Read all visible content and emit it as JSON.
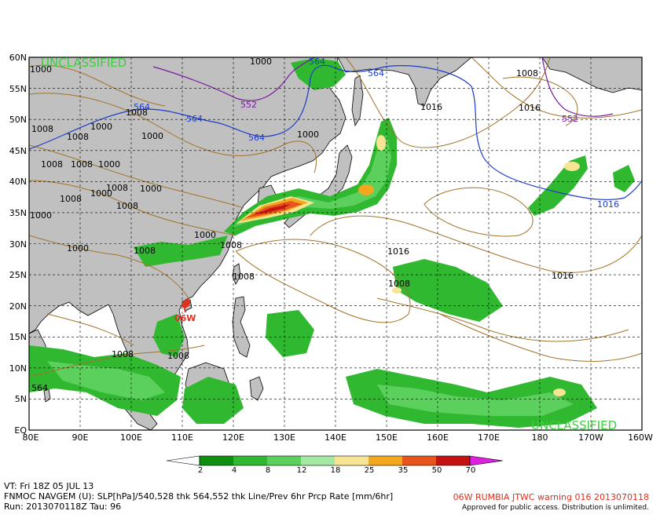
{
  "map": {
    "classification_top": "UNCLASSIFIED",
    "classification_bottom": "UNCLASSIFIED",
    "lat_labels": [
      "60N",
      "55N",
      "50N",
      "45N",
      "40N",
      "35N",
      "30N",
      "25N",
      "20N",
      "15N",
      "10N",
      "5N",
      "EQ"
    ],
    "lon_labels": [
      "80E",
      "90E",
      "100E",
      "110E",
      "120E",
      "130E",
      "140E",
      "150E",
      "160E",
      "170E",
      "180",
      "170W",
      "160W"
    ],
    "storm_label": "06W",
    "colors": {
      "land": "#c0c0c0",
      "ocean": "#ffffff",
      "slp_isobar": "#a0742a",
      "thk_540_528": "#7a1aa0",
      "thk_564_552": "#1e3cc8",
      "classification_text": "#3ad13a",
      "storm": "#e0301e"
    },
    "contour_labels": [
      {
        "text": "1000",
        "id": "c1"
      },
      {
        "text": "1000",
        "id": "c2"
      },
      {
        "text": "564",
        "id": "c3"
      },
      {
        "text": "564",
        "id": "c4"
      },
      {
        "text": "1008",
        "id": "c5"
      },
      {
        "text": "564",
        "id": "c6"
      },
      {
        "text": "552",
        "id": "c7"
      },
      {
        "text": "1008",
        "id": "c8"
      },
      {
        "text": "1016",
        "id": "c9"
      },
      {
        "text": "1016",
        "id": "c10"
      },
      {
        "text": "564",
        "id": "c11"
      },
      {
        "text": "552",
        "id": "c12"
      },
      {
        "text": "1008",
        "id": "c13"
      },
      {
        "text": "1000",
        "id": "c14"
      },
      {
        "text": "1008",
        "id": "c15"
      },
      {
        "text": "1000",
        "id": "c16"
      },
      {
        "text": "1008",
        "id": "c17"
      },
      {
        "text": "564",
        "id": "c18"
      },
      {
        "text": "1000",
        "id": "c19"
      },
      {
        "text": "1008",
        "id": "c20"
      },
      {
        "text": "1000",
        "id": "c21"
      },
      {
        "text": "1008",
        "id": "c22"
      },
      {
        "text": "1000",
        "id": "c23"
      },
      {
        "text": "1008",
        "id": "c24"
      },
      {
        "text": "1000",
        "id": "c25"
      },
      {
        "text": "1008",
        "id": "c26"
      },
      {
        "text": "1000",
        "id": "c27"
      },
      {
        "text": "1000",
        "id": "c28"
      },
      {
        "text": "1000",
        "id": "c29"
      },
      {
        "text": "1008",
        "id": "c30"
      },
      {
        "text": "1008",
        "id": "c31"
      },
      {
        "text": "1016",
        "id": "c32"
      },
      {
        "text": "1008",
        "id": "c33"
      },
      {
        "text": "1016",
        "id": "c34"
      },
      {
        "text": "1008",
        "id": "c35"
      },
      {
        "text": "1008",
        "id": "c36"
      },
      {
        "text": "1008",
        "id": "c37"
      },
      {
        "text": "564",
        "id": "c38"
      },
      {
        "text": "1016",
        "id": "c39"
      }
    ]
  },
  "legend": {
    "ticks": [
      "2",
      "4",
      "8",
      "12",
      "18",
      "25",
      "35",
      "50",
      "70"
    ],
    "colors": [
      "#0f8f0f",
      "#30b830",
      "#5cd05c",
      "#a3e8a3",
      "#f7e494",
      "#f2a71f",
      "#e8551c",
      "#c41212",
      "#900c0c",
      "#e020e0"
    ]
  },
  "footer": {
    "vt": "VT: Fri 18Z 05 JUL 13",
    "model": "FNMOC NAVGEM (U): SLP[hPa]/540,528 thk 564,552 thk Line/Prev 6hr Prcp Rate [mm/6hr]",
    "run": "Run: 2013070118Z Tau: 96",
    "warning": "06W RUMBIA JTWC warning 016 2013070118",
    "approval": "Approved for public access. Distribution is unlimited."
  }
}
